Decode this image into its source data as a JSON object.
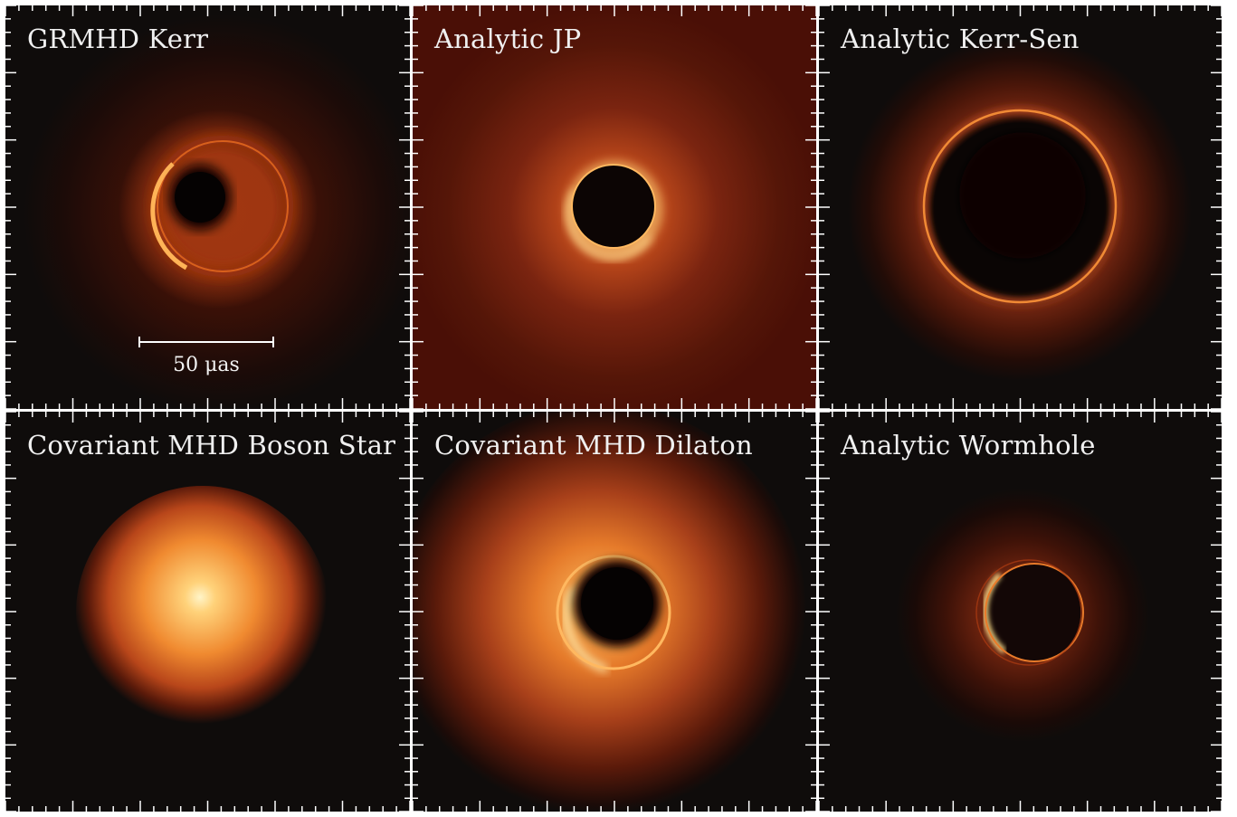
{
  "panels": [
    {
      "title": "GRMHD Kerr"
    },
    {
      "title": "Analytic JP"
    },
    {
      "title": "Analytic Kerr-Sen"
    },
    {
      "title": "Covariant MHD Boson Star"
    },
    {
      "title": "Covariant MHD Dilaton"
    },
    {
      "title": "Analytic Wormhole"
    }
  ],
  "scale_bar": {
    "label": "50 μas"
  },
  "colors": {
    "background_dark": "#0f0c0b",
    "jp_background": "#4a0f06",
    "ring_orange": "#e8701e",
    "ring_bright": "#ffd27a",
    "ticks": "#ffffff"
  }
}
